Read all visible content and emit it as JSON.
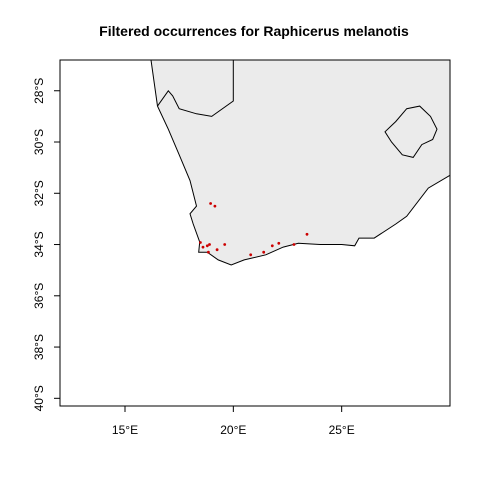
{
  "map": {
    "title": "Filtered occurrences for Raphicerus melanotis",
    "type": "scatter",
    "extent": {
      "lon": [
        12.0,
        30.0
      ],
      "lat": [
        -40.3,
        -26.8
      ]
    },
    "x_ticks": [
      {
        "value": 15,
        "label": "15°E"
      },
      {
        "value": 20,
        "label": "20°E"
      },
      {
        "value": 25,
        "label": "25°E"
      }
    ],
    "y_ticks": [
      {
        "value": -28,
        "label": "28°S"
      },
      {
        "value": -30,
        "label": "30°S"
      },
      {
        "value": -32,
        "label": "32°S"
      },
      {
        "value": -34,
        "label": "34°S"
      },
      {
        "value": -36,
        "label": "36°S"
      },
      {
        "value": -38,
        "label": "38°S"
      },
      {
        "value": -40,
        "label": "40°S"
      }
    ],
    "colors": {
      "land": "#ebebeb",
      "border": "#000000",
      "point": "#cc0000",
      "frame": "#000000"
    },
    "points": [
      {
        "lon": 18.48,
        "lat": -33.92
      },
      {
        "lon": 18.6,
        "lat": -34.1
      },
      {
        "lon": 18.8,
        "lat": -34.05
      },
      {
        "lon": 18.9,
        "lat": -34.0
      },
      {
        "lon": 18.85,
        "lat": -34.3
      },
      {
        "lon": 19.25,
        "lat": -34.2
      },
      {
        "lon": 19.6,
        "lat": -34.0
      },
      {
        "lon": 18.95,
        "lat": -32.4
      },
      {
        "lon": 19.15,
        "lat": -32.5
      },
      {
        "lon": 20.8,
        "lat": -34.4
      },
      {
        "lon": 21.4,
        "lat": -34.3
      },
      {
        "lon": 21.8,
        "lat": -34.05
      },
      {
        "lon": 22.1,
        "lat": -33.95
      },
      {
        "lon": 22.8,
        "lat": -34.0
      },
      {
        "lon": 23.4,
        "lat": -33.6
      }
    ],
    "land_polygon": [
      [
        16.2,
        -26.8
      ],
      [
        16.5,
        -28.6
      ],
      [
        17.0,
        -29.5
      ],
      [
        17.5,
        -30.5
      ],
      [
        18.0,
        -31.5
      ],
      [
        18.3,
        -32.5
      ],
      [
        18.0,
        -32.8
      ],
      [
        18.15,
        -33.2
      ],
      [
        18.45,
        -33.9
      ],
      [
        18.4,
        -34.3
      ],
      [
        18.8,
        -34.3
      ],
      [
        19.3,
        -34.6
      ],
      [
        19.9,
        -34.8
      ],
      [
        20.5,
        -34.6
      ],
      [
        21.5,
        -34.4
      ],
      [
        22.3,
        -34.1
      ],
      [
        23.0,
        -33.95
      ],
      [
        24.0,
        -34.0
      ],
      [
        25.0,
        -34.0
      ],
      [
        25.6,
        -34.05
      ],
      [
        25.8,
        -33.75
      ],
      [
        26.5,
        -33.75
      ],
      [
        27.5,
        -33.2
      ],
      [
        28.0,
        -32.9
      ],
      [
        29.0,
        -31.8
      ],
      [
        30.0,
        -31.3
      ],
      [
        30.0,
        -26.8
      ]
    ],
    "boundaries": [
      [
        [
          16.5,
          -28.6
        ],
        [
          17.0,
          -28.0
        ],
        [
          17.2,
          -28.2
        ],
        [
          17.5,
          -28.7
        ],
        [
          18.3,
          -28.9
        ],
        [
          19.0,
          -29.0
        ],
        [
          20.0,
          -28.4
        ],
        [
          20.0,
          -26.8
        ]
      ]
    ],
    "lesotho": [
      [
        27.0,
        -29.6
      ],
      [
        27.5,
        -29.2
      ],
      [
        28.0,
        -28.7
      ],
      [
        28.6,
        -28.6
      ],
      [
        29.1,
        -29.0
      ],
      [
        29.4,
        -29.5
      ],
      [
        29.2,
        -29.9
      ],
      [
        28.7,
        -30.1
      ],
      [
        28.3,
        -30.6
      ],
      [
        27.8,
        -30.5
      ],
      [
        27.3,
        -30.0
      ],
      [
        27.0,
        -29.6
      ]
    ]
  }
}
